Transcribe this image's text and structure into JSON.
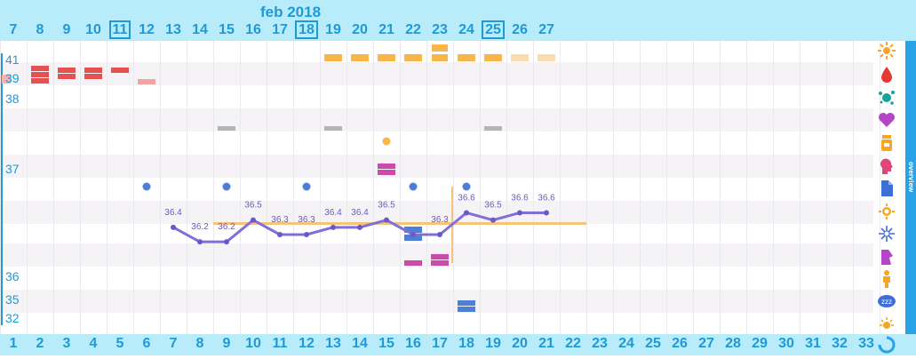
{
  "header": {
    "month_label": "feb 2018",
    "dates": [
      "7",
      "8",
      "9",
      "10",
      "11",
      "12",
      "13",
      "14",
      "15",
      "16",
      "17",
      "18",
      "19",
      "20",
      "21",
      "22",
      "23",
      "24",
      "25",
      "26",
      "27"
    ],
    "boxed_dates": [
      "11",
      "18",
      "25"
    ]
  },
  "footer": {
    "cycle_days": [
      "1",
      "2",
      "3",
      "4",
      "5",
      "6",
      "7",
      "8",
      "9",
      "10",
      "11",
      "12",
      "13",
      "14",
      "15",
      "16",
      "17",
      "18",
      "19",
      "20",
      "21",
      "22",
      "23",
      "24",
      "25",
      "26",
      "27",
      "28",
      "29",
      "30",
      "31",
      "32",
      "33"
    ]
  },
  "y_axis_labels": [
    "41",
    "39",
    "38",
    "37",
    "36",
    "35",
    "32"
  ],
  "temperatures": {
    "days": [
      7,
      8,
      9,
      10,
      11,
      12,
      13,
      14,
      15,
      16,
      17,
      18,
      19,
      20,
      21
    ],
    "values": [
      36.4,
      36.2,
      36.2,
      36.5,
      36.3,
      36.3,
      36.4,
      36.4,
      36.5,
      36.3,
      36.3,
      36.6,
      36.5,
      36.6,
      36.6
    ],
    "labels": [
      "36.4",
      "36.2",
      "36.2",
      "36.5",
      "36.3",
      "36.3",
      "36.4",
      "36.4",
      "36.5",
      "",
      "36.3",
      "36.6",
      "36.5",
      "36.6",
      "36.6"
    ]
  },
  "side_icons": [
    "sun-flower-icon",
    "blood-drop-icon",
    "splat-icon",
    "heart-icon",
    "pill-bottle-icon",
    "head-icon",
    "document-icon",
    "sun-gear-icon",
    "sparkle-icon",
    "body-icon",
    "person-icon",
    "sleep-zzz-icon",
    "sun-small-icon",
    "refresh-icon"
  ],
  "overview_label": "overview",
  "colors": {
    "accent": "#1e9ad6",
    "header_bg": "#b8ecfb",
    "line": "#7f6fd8",
    "period": "#e55050",
    "fertile": "#f7b54a",
    "coverline": "#f7c27a",
    "dot": "#4e7fd6",
    "pink": "#cc4aaa"
  }
}
